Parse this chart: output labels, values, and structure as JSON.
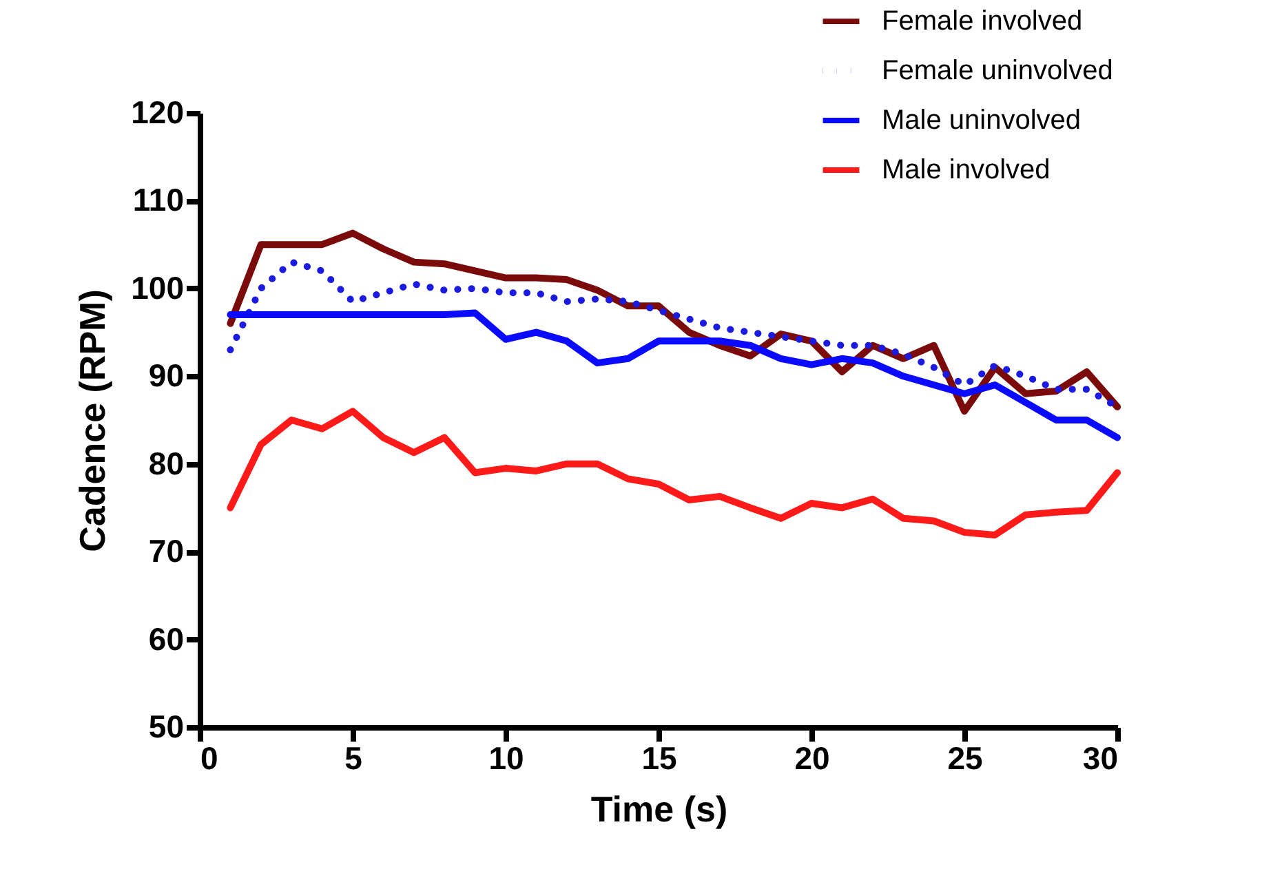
{
  "chart_data": {
    "type": "line",
    "xlabel": "Time (s)",
    "ylabel": "Cadence (RPM)",
    "x": [
      1,
      2,
      3,
      4,
      5,
      6,
      7,
      8,
      9,
      10,
      11,
      12,
      13,
      14,
      15,
      16,
      17,
      18,
      19,
      20,
      21,
      22,
      23,
      24,
      25,
      26,
      27,
      28,
      29,
      30
    ],
    "series": [
      {
        "name": "Female involved",
        "color": "#7b0a0a",
        "line_style": "solid",
        "values": [
          96,
          105,
          105,
          105,
          106.3,
          104.5,
          103,
          102.8,
          102,
          101.2,
          101.2,
          101,
          99.8,
          98,
          98,
          95,
          93.5,
          92.3,
          94.8,
          94,
          90.5,
          93.5,
          92,
          93.5,
          86,
          91,
          88,
          88.3,
          90.5,
          86.5
        ]
      },
      {
        "name": "Female uninvolved",
        "color": "#1a1ae0",
        "line_style": "dotted",
        "values": [
          93,
          100,
          103,
          102,
          98.5,
          99.5,
          100.5,
          99.8,
          100,
          99.5,
          99.5,
          98.5,
          98.8,
          98.5,
          97.5,
          96.5,
          95.5,
          95,
          94.5,
          94,
          93.5,
          93.5,
          92.5,
          91,
          89,
          91.2,
          90,
          88.5,
          88.5,
          86.5
        ]
      },
      {
        "name": "Male uninvolved",
        "color": "#0a0aff",
        "line_style": "solid",
        "values": [
          97,
          97,
          97,
          97,
          97,
          97,
          97,
          97,
          97.2,
          94.2,
          95,
          94,
          91.5,
          92,
          94,
          94,
          94,
          93.5,
          92,
          91.3,
          92,
          91.5,
          90,
          89,
          88,
          89,
          87,
          85,
          85,
          83
        ]
      },
      {
        "name": "Male involved",
        "color": "#ff1a1a",
        "line_style": "solid",
        "values": [
          75,
          82.2,
          85,
          84,
          86,
          83,
          81.3,
          83,
          79,
          79.5,
          79.2,
          80,
          80,
          78.3,
          77.7,
          75.9,
          76.3,
          75,
          73.8,
          75.5,
          75,
          76,
          73.8,
          73.5,
          72.2,
          71.9,
          74.2,
          74.5,
          74.7,
          79
        ]
      }
    ],
    "xlim": [
      0,
      30
    ],
    "xticks": [
      0,
      5,
      10,
      15,
      20,
      25,
      30
    ],
    "ylim": [
      50,
      120
    ],
    "yticks": [
      50,
      60,
      70,
      80,
      90,
      100,
      110,
      120
    ],
    "grid": false,
    "legend": "top right",
    "marker": "none"
  }
}
